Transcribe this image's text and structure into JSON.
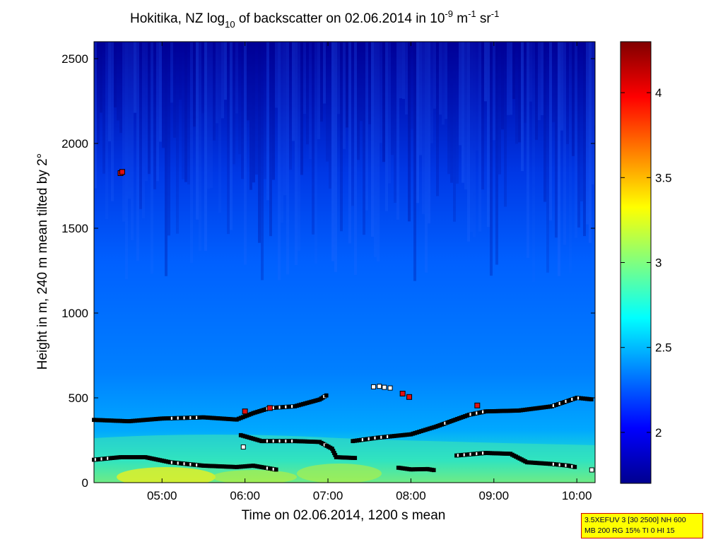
{
  "chart_data": {
    "type": "heatmap",
    "title": {
      "prefix": "Hokitika, NZ log",
      "sub": "10",
      "middle": " of backscatter on 02.06.2014 in 10",
      "sup1": "-9",
      "unit1": " m",
      "sup2": "-1",
      "unit2": " sr",
      "sup3": "-1"
    },
    "xlabel": "Time on 02.06.2014, 1200 s mean",
    "ylabel": "Height in m, 240 m mean tilted by 2°",
    "x_range_hours": [
      4.18,
      10.22
    ],
    "ylim": [
      0,
      2600
    ],
    "x_ticks": [
      {
        "value": 5,
        "label": "05:00"
      },
      {
        "value": 6,
        "label": "06:00"
      },
      {
        "value": 7,
        "label": "07:00"
      },
      {
        "value": 8,
        "label": "08:00"
      },
      {
        "value": 9,
        "label": "09:00"
      },
      {
        "value": 10,
        "label": "10:00"
      }
    ],
    "y_ticks": [
      {
        "value": 0,
        "label": "0"
      },
      {
        "value": 500,
        "label": "500"
      },
      {
        "value": 1000,
        "label": "1000"
      },
      {
        "value": 1500,
        "label": "1500"
      },
      {
        "value": 2000,
        "label": "2000"
      },
      {
        "value": 2500,
        "label": "2500"
      }
    ],
    "colorbar": {
      "range": [
        1.7,
        4.3
      ],
      "colormap": "jet",
      "ticks": [
        {
          "value": 2,
          "label": "2"
        },
        {
          "value": 2.5,
          "label": "2.5"
        },
        {
          "value": 3,
          "label": "3"
        },
        {
          "value": 3.5,
          "label": "3.5"
        },
        {
          "value": 4,
          "label": "4"
        }
      ]
    },
    "layer_lines": [
      {
        "name": "layer-upper",
        "points": [
          [
            4.18,
            370
          ],
          [
            4.6,
            362
          ],
          [
            5.0,
            378
          ],
          [
            5.5,
            385
          ],
          [
            5.9,
            372
          ],
          [
            6.1,
            410
          ],
          [
            6.3,
            440
          ],
          [
            6.6,
            450
          ],
          [
            6.9,
            490
          ],
          [
            7.0,
            520
          ]
        ]
      },
      {
        "name": "layer-upper-right",
        "points": [
          [
            7.3,
            245
          ],
          [
            7.6,
            265
          ],
          [
            8.0,
            285
          ],
          [
            8.3,
            330
          ],
          [
            8.7,
            400
          ],
          [
            8.9,
            420
          ],
          [
            9.3,
            425
          ],
          [
            9.7,
            450
          ],
          [
            10.0,
            500
          ],
          [
            10.2,
            490
          ]
        ]
      },
      {
        "name": "layer-middle",
        "points": [
          [
            5.95,
            280
          ],
          [
            6.2,
            245
          ],
          [
            6.6,
            245
          ],
          [
            6.9,
            240
          ],
          [
            7.05,
            200
          ],
          [
            7.1,
            150
          ],
          [
            7.35,
            145
          ]
        ]
      },
      {
        "name": "layer-lower",
        "points": [
          [
            4.18,
            135
          ],
          [
            4.5,
            150
          ],
          [
            4.8,
            150
          ],
          [
            5.1,
            120
          ],
          [
            5.5,
            100
          ],
          [
            5.9,
            92
          ],
          [
            6.1,
            100
          ],
          [
            6.4,
            75
          ]
        ]
      },
      {
        "name": "layer-lower-right-a",
        "points": [
          [
            7.85,
            88
          ],
          [
            8.0,
            78
          ],
          [
            8.2,
            80
          ],
          [
            8.3,
            72
          ]
        ]
      },
      {
        "name": "layer-lower-right-b",
        "points": [
          [
            8.55,
            160
          ],
          [
            8.9,
            175
          ],
          [
            9.2,
            170
          ],
          [
            9.4,
            120
          ],
          [
            9.7,
            110
          ],
          [
            9.9,
            100
          ],
          [
            10.0,
            90
          ]
        ]
      }
    ],
    "red_markers": [
      {
        "x": 4.5,
        "y": 1825
      },
      {
        "x": 4.52,
        "y": 1832
      },
      {
        "x": 6.0,
        "y": 420
      },
      {
        "x": 6.3,
        "y": 440
      },
      {
        "x": 7.9,
        "y": 525
      },
      {
        "x": 7.98,
        "y": 505
      },
      {
        "x": 8.8,
        "y": 455
      }
    ],
    "isolated_points": [
      {
        "x": 7.55,
        "y": 565
      },
      {
        "x": 7.62,
        "y": 568
      },
      {
        "x": 7.68,
        "y": 562
      },
      {
        "x": 7.75,
        "y": 558
      },
      {
        "x": 5.98,
        "y": 210
      },
      {
        "x": 10.18,
        "y": 75
      }
    ]
  },
  "info_box": {
    "line1": "3.5XEFUV 3 [30 2500] NH 600",
    "line2": "MB 200 RG 15% TI 0 HI 15"
  }
}
